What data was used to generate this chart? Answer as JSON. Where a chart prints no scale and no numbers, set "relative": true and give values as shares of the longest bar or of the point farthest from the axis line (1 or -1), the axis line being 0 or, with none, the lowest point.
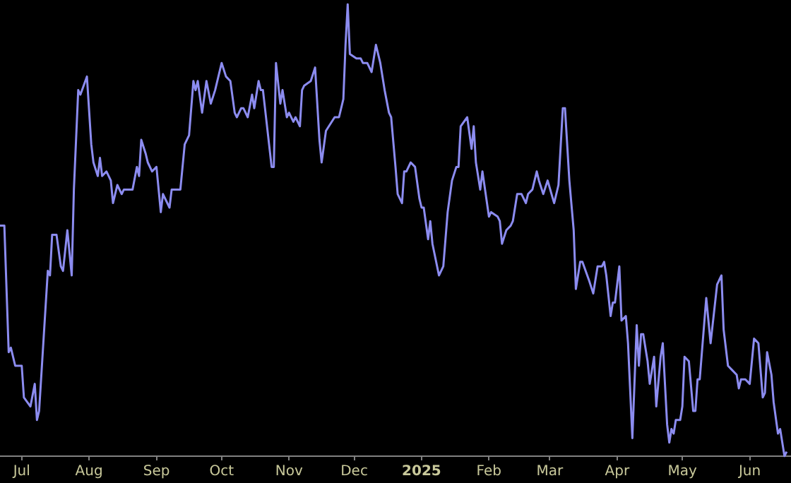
{
  "chart_data": {
    "type": "line",
    "relative": true,
    "xlim": [
      "2024-06-21",
      "2025-06-20"
    ],
    "xticks": [
      {
        "value": "2024-07-01",
        "label": "Jul"
      },
      {
        "value": "2024-08-01",
        "label": "Aug"
      },
      {
        "value": "2024-09-01",
        "label": "Sep"
      },
      {
        "value": "2024-10-01",
        "label": "Oct"
      },
      {
        "value": "2024-11-01",
        "label": "Nov"
      },
      {
        "value": "2024-12-01",
        "label": "Dec"
      },
      {
        "value": "2025-01-01",
        "label": "2025"
      },
      {
        "value": "2025-02-01",
        "label": "Feb"
      },
      {
        "value": "2025-03-01",
        "label": "Mar"
      },
      {
        "value": "2025-04-01",
        "label": "Apr"
      },
      {
        "value": "2025-05-01",
        "label": "May"
      },
      {
        "value": "2025-06-01",
        "label": "Jun"
      }
    ],
    "x": [
      "2024-06-21",
      "2024-06-23",
      "2024-06-25",
      "2024-06-26",
      "2024-06-28",
      "2024-07-01",
      "2024-07-02",
      "2024-07-05",
      "2024-07-07",
      "2024-07-08",
      "2024-07-09",
      "2024-07-13",
      "2024-07-14",
      "2024-07-15",
      "2024-07-17",
      "2024-07-19",
      "2024-07-20",
      "2024-07-22",
      "2024-07-24",
      "2024-07-25",
      "2024-07-27",
      "2024-07-28",
      "2024-07-31",
      "2024-08-02",
      "2024-08-03",
      "2024-08-05",
      "2024-08-06",
      "2024-08-07",
      "2024-08-09",
      "2024-08-11",
      "2024-08-12",
      "2024-08-14",
      "2024-08-16",
      "2024-08-17",
      "2024-08-21",
      "2024-08-23",
      "2024-08-24",
      "2024-08-25",
      "2024-08-27",
      "2024-08-28",
      "2024-08-30",
      "2024-09-01",
      "2024-09-03",
      "2024-09-04",
      "2024-09-07",
      "2024-09-08",
      "2024-09-12",
      "2024-09-14",
      "2024-09-16",
      "2024-09-18",
      "2024-09-19",
      "2024-09-20",
      "2024-09-22",
      "2024-09-24",
      "2024-09-26",
      "2024-09-28",
      "2024-10-01",
      "2024-10-03",
      "2024-10-05",
      "2024-10-07",
      "2024-10-08",
      "2024-10-10",
      "2024-10-11",
      "2024-10-13",
      "2024-10-15",
      "2024-10-16",
      "2024-10-18",
      "2024-10-19",
      "2024-10-20",
      "2024-10-24",
      "2024-10-25",
      "2024-10-26",
      "2024-10-28",
      "2024-10-29",
      "2024-10-31",
      "2024-11-01",
      "2024-11-03",
      "2024-11-04",
      "2024-11-06",
      "2024-11-07",
      "2024-11-08",
      "2024-11-11",
      "2024-11-13",
      "2024-11-15",
      "2024-11-16",
      "2024-11-18",
      "2024-11-22",
      "2024-11-24",
      "2024-11-26",
      "2024-11-27",
      "2024-11-28",
      "2024-11-29",
      "2024-12-02",
      "2024-12-04",
      "2024-12-05",
      "2024-12-07",
      "2024-12-09",
      "2024-12-11",
      "2024-12-13",
      "2024-12-15",
      "2024-12-17",
      "2024-12-18",
      "2024-12-20",
      "2024-12-21",
      "2024-12-23",
      "2024-12-24",
      "2024-12-25",
      "2024-12-27",
      "2024-12-29",
      "2024-12-31",
      "2025-01-01",
      "2025-01-02",
      "2025-01-04",
      "2025-01-05",
      "2025-01-06",
      "2025-01-09",
      "2025-01-10",
      "2025-01-11",
      "2025-01-13",
      "2025-01-15",
      "2025-01-17",
      "2025-01-18",
      "2025-01-19",
      "2025-01-22",
      "2025-01-24",
      "2025-01-25",
      "2025-01-26",
      "2025-01-28",
      "2025-01-29",
      "2025-02-01",
      "2025-02-02",
      "2025-02-05",
      "2025-02-06",
      "2025-02-07",
      "2025-02-09",
      "2025-02-11",
      "2025-02-12",
      "2025-02-14",
      "2025-02-16",
      "2025-02-18",
      "2025-02-19",
      "2025-02-21",
      "2025-02-23",
      "2025-02-24",
      "2025-02-26",
      "2025-02-28",
      "2025-03-03",
      "2025-03-05",
      "2025-03-07",
      "2025-03-08",
      "2025-03-10",
      "2025-03-12",
      "2025-03-13",
      "2025-03-15",
      "2025-03-16",
      "2025-03-19",
      "2025-03-21",
      "2025-03-23",
      "2025-03-25",
      "2025-03-26",
      "2025-03-27",
      "2025-03-29",
      "2025-03-30",
      "2025-03-31",
      "2025-04-02",
      "2025-04-03",
      "2025-04-05",
      "2025-04-06",
      "2025-04-08",
      "2025-04-10",
      "2025-04-11",
      "2025-04-12",
      "2025-04-13",
      "2025-04-15",
      "2025-04-16",
      "2025-04-18",
      "2025-04-19",
      "2025-04-21",
      "2025-04-22",
      "2025-04-24",
      "2025-04-25",
      "2025-04-26",
      "2025-04-27",
      "2025-04-28",
      "2025-04-30",
      "2025-05-01",
      "2025-05-02",
      "2025-05-04",
      "2025-05-06",
      "2025-05-07",
      "2025-05-08",
      "2025-05-09",
      "2025-05-12",
      "2025-05-14",
      "2025-05-17",
      "2025-05-19",
      "2025-05-20",
      "2025-05-22",
      "2025-05-24",
      "2025-05-26",
      "2025-05-27",
      "2025-05-28",
      "2025-05-30",
      "2025-06-01",
      "2025-06-03",
      "2025-06-05",
      "2025-06-07",
      "2025-06-08",
      "2025-06-09",
      "2025-06-11",
      "2025-06-12",
      "2025-06-14",
      "2025-06-15",
      "2025-06-17",
      "2025-06-18"
    ],
    "series": [
      {
        "color": "#8c8cf0",
        "values": [
          0.51,
          0.51,
          0.23,
          0.24,
          0.2,
          0.2,
          0.13,
          0.11,
          0.16,
          0.08,
          0.1,
          0.41,
          0.4,
          0.49,
          0.49,
          0.42,
          0.41,
          0.5,
          0.4,
          0.59,
          0.81,
          0.8,
          0.84,
          0.69,
          0.65,
          0.62,
          0.66,
          0.62,
          0.63,
          0.61,
          0.56,
          0.6,
          0.58,
          0.59,
          0.59,
          0.64,
          0.62,
          0.7,
          0.67,
          0.65,
          0.63,
          0.64,
          0.54,
          0.58,
          0.55,
          0.59,
          0.59,
          0.69,
          0.71,
          0.83,
          0.81,
          0.83,
          0.76,
          0.83,
          0.78,
          0.81,
          0.87,
          0.84,
          0.83,
          0.76,
          0.75,
          0.77,
          0.77,
          0.75,
          0.8,
          0.77,
          0.83,
          0.81,
          0.81,
          0.64,
          0.64,
          0.87,
          0.78,
          0.81,
          0.75,
          0.76,
          0.74,
          0.75,
          0.73,
          0.81,
          0.82,
          0.83,
          0.86,
          0.7,
          0.65,
          0.72,
          0.75,
          0.75,
          0.79,
          0.91,
          1,
          0.89,
          0.88,
          0.88,
          0.87,
          0.87,
          0.85,
          0.91,
          0.87,
          0.81,
          0.76,
          0.75,
          0.64,
          0.58,
          0.56,
          0.63,
          0.63,
          0.65,
          0.64,
          0.57,
          0.55,
          0.55,
          0.48,
          0.52,
          0.47,
          0.4,
          0.41,
          0.42,
          0.54,
          0.61,
          0.64,
          0.64,
          0.73,
          0.75,
          0.68,
          0.73,
          0.65,
          0.59,
          0.63,
          0.53,
          0.54,
          0.53,
          0.52,
          0.47,
          0.5,
          0.51,
          0.52,
          0.58,
          0.58,
          0.56,
          0.58,
          0.59,
          0.63,
          0.61,
          0.58,
          0.61,
          0.56,
          0.6,
          0.77,
          0.77,
          0.61,
          0.5,
          0.37,
          0.43,
          0.43,
          0.39,
          0.36,
          0.42,
          0.42,
          0.43,
          0.4,
          0.31,
          0.34,
          0.34,
          0.42,
          0.3,
          0.31,
          0.25,
          0.04,
          0.29,
          0.2,
          0.27,
          0.27,
          0.21,
          0.16,
          0.22,
          0.11,
          0.22,
          0.25,
          0.07,
          0.03,
          0.06,
          0.05,
          0.08,
          0.08,
          0.11,
          0.22,
          0.21,
          0.1,
          0.1,
          0.17,
          0.17,
          0.35,
          0.25,
          0.38,
          0.4,
          0.28,
          0.2,
          0.19,
          0.18,
          0.15,
          0.17,
          0.17,
          0.16,
          0.26,
          0.25,
          0.13,
          0.14,
          0.23,
          0.18,
          0.12,
          0.05,
          0.06,
          0,
          0.01
        ]
      }
    ]
  }
}
